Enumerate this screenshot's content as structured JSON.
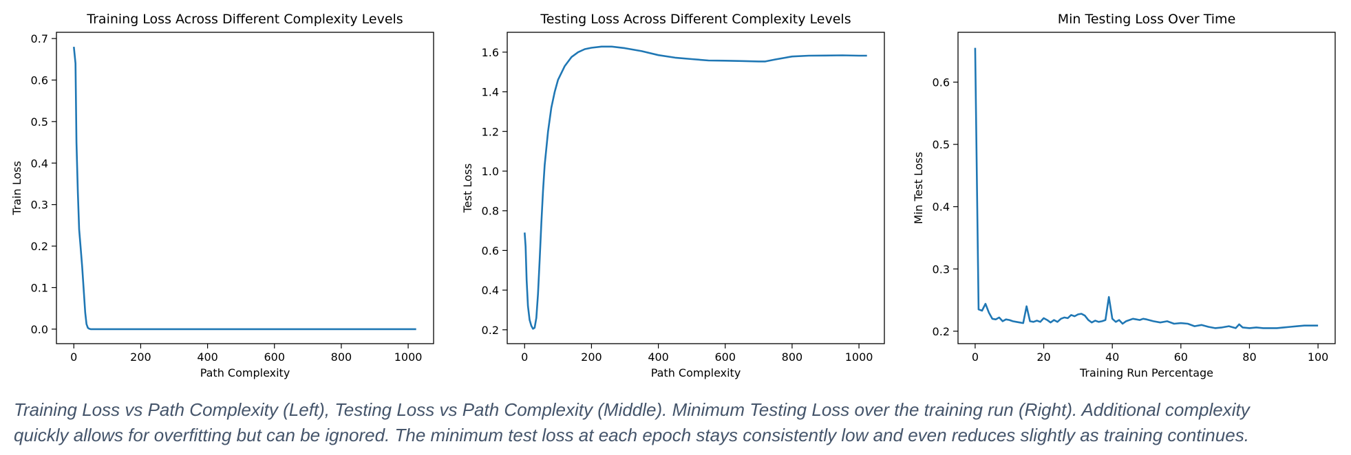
{
  "chart_data": [
    {
      "type": "line",
      "title": "Training Loss Across Different Complexity Levels",
      "xlabel": "Path Complexity",
      "ylabel": "Train Loss",
      "xlim": [
        -52,
        1076
      ],
      "ylim": [
        -0.035,
        0.715
      ],
      "xticks": [
        0,
        200,
        400,
        600,
        800,
        1000
      ],
      "yticks": [
        0.0,
        0.1,
        0.2,
        0.3,
        0.4,
        0.5,
        0.6,
        0.7
      ],
      "xtick_labels": [
        "0",
        "200",
        "400",
        "600",
        "800",
        "1000"
      ],
      "ytick_labels": [
        "0.0",
        "0.1",
        "0.2",
        "0.3",
        "0.4",
        "0.5",
        "0.6",
        "0.7"
      ],
      "color": "#1f77b4",
      "series": [
        {
          "x": [
            0,
            5,
            8,
            12,
            16,
            20,
            25,
            30,
            34,
            38,
            42,
            46,
            50,
            100,
            300,
            500,
            700,
            900,
            1024
          ],
          "y": [
            0.68,
            0.64,
            0.45,
            0.33,
            0.24,
            0.2,
            0.15,
            0.09,
            0.04,
            0.012,
            0.003,
            0.001,
            0.0,
            0.0,
            0.0,
            0.0,
            0.0,
            0.0,
            0.0
          ]
        }
      ]
    },
    {
      "type": "line",
      "title": "Testing Loss Across Different Complexity Levels",
      "xlabel": "Path Complexity",
      "ylabel": "Test Loss",
      "xlim": [
        -52,
        1076
      ],
      "ylim": [
        0.13,
        1.7
      ],
      "xticks": [
        0,
        200,
        400,
        600,
        800,
        1000
      ],
      "yticks": [
        0.2,
        0.4,
        0.6,
        0.8,
        1.0,
        1.2,
        1.4,
        1.6
      ],
      "xtick_labels": [
        "0",
        "200",
        "400",
        "600",
        "800",
        "1000"
      ],
      "ytick_labels": [
        "0.2",
        "0.4",
        "0.6",
        "0.8",
        "1.0",
        "1.2",
        "1.4",
        "1.6"
      ],
      "color": "#1f77b4",
      "series": [
        {
          "x": [
            0,
            3,
            6,
            10,
            15,
            20,
            25,
            30,
            35,
            40,
            45,
            50,
            55,
            60,
            70,
            80,
            90,
            100,
            120,
            140,
            160,
            180,
            200,
            230,
            260,
            300,
            350,
            400,
            450,
            500,
            550,
            600,
            650,
            700,
            720,
            750,
            800,
            850,
            900,
            950,
            1000,
            1024
          ],
          "y": [
            0.69,
            0.62,
            0.45,
            0.32,
            0.25,
            0.22,
            0.205,
            0.21,
            0.26,
            0.38,
            0.55,
            0.74,
            0.9,
            1.03,
            1.2,
            1.32,
            1.4,
            1.46,
            1.53,
            1.575,
            1.6,
            1.615,
            1.622,
            1.628,
            1.628,
            1.62,
            1.605,
            1.585,
            1.572,
            1.565,
            1.558,
            1.557,
            1.555,
            1.553,
            1.553,
            1.563,
            1.578,
            1.582,
            1.583,
            1.584,
            1.582,
            1.582
          ]
        }
      ]
    },
    {
      "type": "line",
      "title": "Min Testing Loss Over Time",
      "xlabel": "Training Run Percentage",
      "ylabel": "Min Test Loss",
      "xlim": [
        -5,
        105
      ],
      "ylim": [
        0.18,
        0.68
      ],
      "xticks": [
        0,
        20,
        40,
        60,
        80,
        100
      ],
      "yticks": [
        0.2,
        0.3,
        0.4,
        0.5,
        0.6
      ],
      "xtick_labels": [
        "0",
        "20",
        "40",
        "60",
        "80",
        "100"
      ],
      "ytick_labels": [
        "0.2",
        "0.3",
        "0.4",
        "0.5",
        "0.6"
      ],
      "color": "#1f77b4",
      "series": [
        {
          "x": [
            0,
            1,
            2,
            3,
            4,
            5,
            6,
            7,
            8,
            9,
            10,
            11,
            12,
            13,
            14,
            15,
            16,
            17,
            18,
            19,
            20,
            21,
            22,
            23,
            24,
            25,
            26,
            27,
            28,
            29,
            30,
            31,
            32,
            33,
            34,
            35,
            36,
            37,
            38,
            39,
            40,
            41,
            42,
            43,
            44,
            45,
            46,
            47,
            48,
            49,
            50,
            52,
            54,
            56,
            58,
            60,
            62,
            64,
            66,
            68,
            70,
            72,
            74,
            76,
            77,
            78,
            80,
            82,
            84,
            86,
            88,
            90,
            92,
            94,
            96,
            98,
            100
          ],
          "y": [
            0.655,
            0.235,
            0.233,
            0.244,
            0.23,
            0.22,
            0.219,
            0.222,
            0.216,
            0.219,
            0.218,
            0.216,
            0.215,
            0.214,
            0.213,
            0.24,
            0.216,
            0.215,
            0.217,
            0.215,
            0.221,
            0.218,
            0.214,
            0.218,
            0.215,
            0.22,
            0.222,
            0.221,
            0.226,
            0.224,
            0.227,
            0.228,
            0.225,
            0.218,
            0.214,
            0.217,
            0.215,
            0.216,
            0.218,
            0.255,
            0.22,
            0.215,
            0.218,
            0.212,
            0.216,
            0.218,
            0.22,
            0.219,
            0.218,
            0.22,
            0.219,
            0.216,
            0.214,
            0.216,
            0.212,
            0.213,
            0.212,
            0.208,
            0.21,
            0.207,
            0.205,
            0.206,
            0.208,
            0.205,
            0.211,
            0.206,
            0.205,
            0.206,
            0.205,
            0.205,
            0.205,
            0.206,
            0.207,
            0.208,
            0.209,
            0.209,
            0.209
          ]
        }
      ]
    }
  ],
  "caption": {
    "line1": "Training Loss vs Path Complexity (Left), Testing Loss vs Path Complexity (Middle). Minimum Testing Loss over the training run (Right).  Additional complexity",
    "line2": "quickly allows for overfitting but can be ignored. The minimum test loss at each epoch stays consistently low and even reduces slightly as training continues."
  }
}
